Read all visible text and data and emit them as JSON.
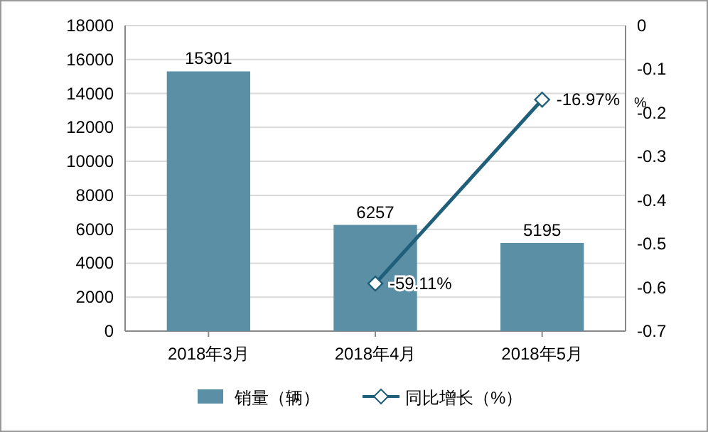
{
  "chart_data": {
    "type": "bar",
    "categories": [
      "2018年3月",
      "2018年4月",
      "2018年5月"
    ],
    "series": [
      {
        "name": "销量（辆）",
        "color": "#5b8fa6",
        "values": [
          15301,
          6257,
          5195
        ],
        "value_labels": [
          "15301",
          "6257",
          "5195"
        ]
      },
      {
        "name": "同比增长（%）",
        "type": "line",
        "axis": "y2",
        "color": "#1f5f7a",
        "values": [
          null,
          -0.5911,
          -0.1697
        ],
        "value_labels": [
          null,
          "-59.11%",
          "-16.97%"
        ],
        "marker": "diamond"
      }
    ],
    "ylim": [
      0,
      18000
    ],
    "yticks": [
      0,
      2000,
      4000,
      6000,
      8000,
      10000,
      12000,
      14000,
      16000,
      18000
    ],
    "y2lim": [
      -0.7,
      0
    ],
    "y2ticks": [
      -0.7,
      -0.6,
      -0.5,
      -0.4,
      -0.3,
      -0.2,
      -0.1,
      0
    ],
    "y2label": "%",
    "grid": "y",
    "legend": "bottom"
  }
}
